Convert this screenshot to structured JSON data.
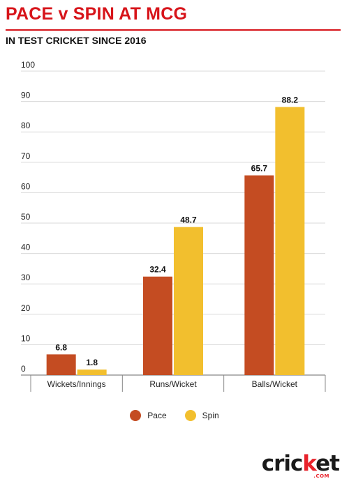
{
  "header": {
    "title": "PACE v SPIN AT MCG",
    "subtitle": "IN TEST CRICKET SINCE 2016"
  },
  "colors": {
    "title_red": "#d7141a",
    "pace": "#c44c22",
    "spin": "#f2bf2e",
    "grid": "#d9d9d9",
    "axis": "#888888"
  },
  "chart_data": {
    "type": "bar",
    "title": "PACE v SPIN AT MCG",
    "subtitle": "IN TEST CRICKET SINCE 2016",
    "categories": [
      "Wickets/Innings",
      "Runs/Wicket",
      "Balls/Wicket"
    ],
    "series": [
      {
        "name": "Pace",
        "values": [
          6.8,
          32.4,
          65.7
        ]
      },
      {
        "name": "Spin",
        "values": [
          1.8,
          48.7,
          88.2
        ]
      }
    ],
    "ylim": [
      0,
      100
    ],
    "yticks": [
      0,
      10,
      20,
      30,
      40,
      50,
      60,
      70,
      80,
      90,
      100
    ],
    "xlabel": "",
    "ylabel": "",
    "grid": true,
    "legend": "bottom-center",
    "data_labels": true
  },
  "legend": {
    "pace_label": "Pace",
    "spin_label": "Spin"
  },
  "logo": {
    "word_left": "cric",
    "word_right": "et",
    "suffix": ".COM",
    "dot_glyph": "k"
  }
}
